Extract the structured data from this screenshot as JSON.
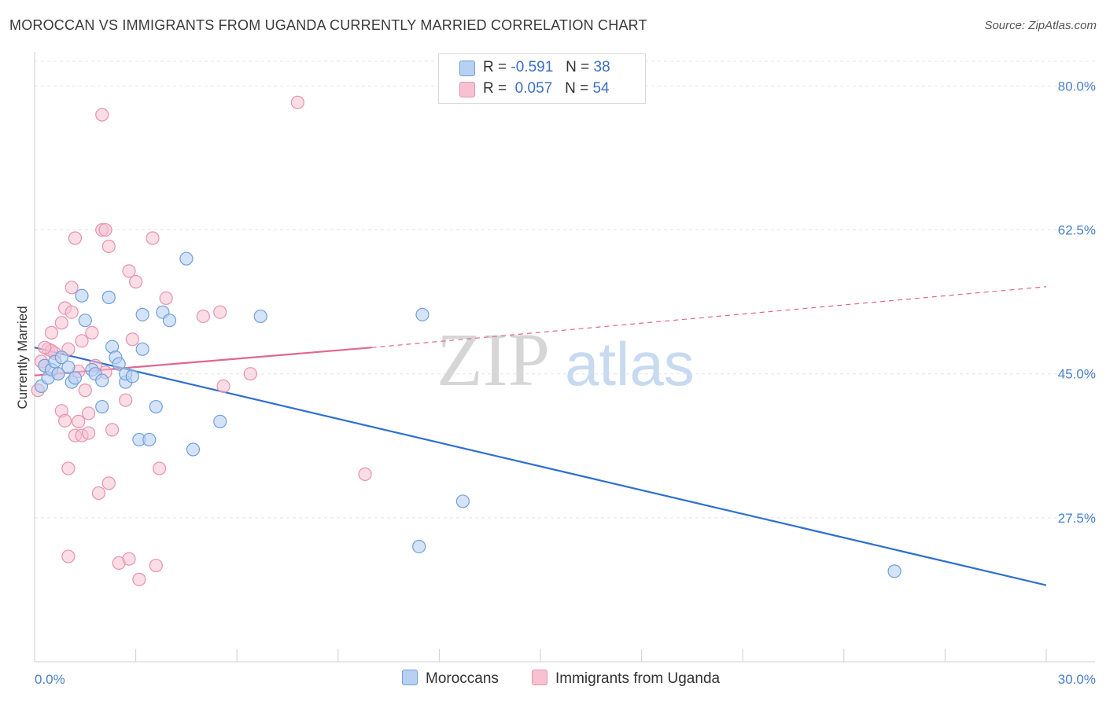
{
  "title": "MOROCCAN VS IMMIGRANTS FROM UGANDA CURRENTLY MARRIED CORRELATION CHART",
  "source": "Source: ZipAtlas.com",
  "legend": {
    "moroccans": {
      "r_label": "R =",
      "r_value": "-0.591",
      "n_label": "N =",
      "n_value": "38"
    },
    "uganda": {
      "r_label": "R =",
      "r_value": "0.057",
      "n_label": "N =",
      "n_value": "54"
    }
  },
  "bottom_legend": {
    "moroccans": "Moroccans",
    "uganda": "Immigrants from Uganda"
  },
  "watermark": {
    "zip": "ZIP",
    "atlas": "atlas"
  },
  "colors": {
    "moroccans_fill": "#b7d1f2",
    "moroccans_stroke": "#6f9fdc",
    "moroccans_line": "#2f6fd0",
    "uganda_fill": "#f7c1d1",
    "uganda_stroke": "#e891ae",
    "uganda_line": "#e06692",
    "tick_text": "#4a7fc8",
    "grid": "#e4e4e4"
  },
  "chart_data": {
    "type": "scatter",
    "title": "MOROCCAN VS IMMIGRANTS FROM UGANDA CURRENTLY MARRIED CORRELATION CHART",
    "xlabel": "",
    "ylabel": "Currently Married",
    "xlim": [
      0,
      30
    ],
    "ylim": [
      10,
      83
    ],
    "x_tick_labels": [
      "0.0%",
      "30.0%"
    ],
    "y_ticks": [
      27.5,
      45.0,
      62.5,
      80.0
    ],
    "y_tick_labels": [
      "27.5%",
      "45.0%",
      "62.5%",
      "80.0%"
    ],
    "series": [
      {
        "name": "Moroccans",
        "points": [
          [
            0.2,
            43.5
          ],
          [
            0.3,
            46.0
          ],
          [
            0.4,
            44.5
          ],
          [
            0.5,
            45.5
          ],
          [
            0.6,
            46.5
          ],
          [
            0.7,
            45.0
          ],
          [
            0.8,
            47.0
          ],
          [
            1.0,
            45.8
          ],
          [
            1.1,
            44.0
          ],
          [
            1.2,
            44.5
          ],
          [
            1.4,
            54.5
          ],
          [
            1.5,
            51.5
          ],
          [
            1.7,
            45.5
          ],
          [
            1.8,
            45.0
          ],
          [
            2.0,
            41.0
          ],
          [
            2.0,
            44.2
          ],
          [
            2.2,
            54.3
          ],
          [
            2.3,
            48.3
          ],
          [
            2.4,
            47.0
          ],
          [
            2.5,
            46.2
          ],
          [
            2.7,
            44.0
          ],
          [
            2.7,
            45.0
          ],
          [
            2.9,
            44.7
          ],
          [
            3.1,
            37.0
          ],
          [
            3.2,
            48.0
          ],
          [
            3.2,
            52.2
          ],
          [
            3.4,
            37.0
          ],
          [
            3.6,
            41.0
          ],
          [
            3.8,
            52.5
          ],
          [
            4.0,
            51.5
          ],
          [
            4.5,
            59.0
          ],
          [
            4.7,
            35.8
          ],
          [
            5.5,
            39.2
          ],
          [
            6.7,
            52.0
          ],
          [
            11.5,
            52.2
          ],
          [
            12.7,
            29.5
          ],
          [
            11.4,
            24.0
          ],
          [
            25.5,
            21.0
          ]
        ],
        "trend": {
          "x": [
            0,
            30
          ],
          "y": [
            48.2,
            19.3
          ]
        }
      },
      {
        "name": "Immigrants from Uganda",
        "points": [
          [
            0.1,
            43.0
          ],
          [
            0.2,
            46.5
          ],
          [
            0.3,
            46.0
          ],
          [
            0.4,
            48.0
          ],
          [
            0.5,
            50.0
          ],
          [
            0.6,
            47.5
          ],
          [
            0.7,
            45.0
          ],
          [
            0.8,
            51.2
          ],
          [
            0.8,
            40.5
          ],
          [
            0.9,
            39.3
          ],
          [
            1.0,
            48.0
          ],
          [
            0.9,
            53.0
          ],
          [
            1.1,
            52.5
          ],
          [
            1.0,
            33.5
          ],
          [
            1.0,
            22.8
          ],
          [
            1.1,
            55.5
          ],
          [
            1.2,
            61.5
          ],
          [
            1.2,
            37.5
          ],
          [
            1.3,
            39.2
          ],
          [
            1.4,
            37.5
          ],
          [
            1.4,
            49.0
          ],
          [
            1.5,
            43.0
          ],
          [
            1.6,
            37.8
          ],
          [
            1.7,
            50.0
          ],
          [
            1.8,
            46.0
          ],
          [
            1.9,
            30.5
          ],
          [
            2.0,
            62.5
          ],
          [
            2.1,
            62.5
          ],
          [
            2.2,
            60.5
          ],
          [
            2.2,
            31.7
          ],
          [
            2.3,
            38.2
          ],
          [
            2.0,
            76.5
          ],
          [
            2.5,
            22.0
          ],
          [
            2.8,
            22.5
          ],
          [
            2.7,
            41.8
          ],
          [
            2.8,
            57.5
          ],
          [
            2.9,
            49.2
          ],
          [
            3.0,
            56.2
          ],
          [
            3.1,
            20.0
          ],
          [
            3.5,
            61.5
          ],
          [
            3.6,
            21.7
          ],
          [
            3.7,
            33.5
          ],
          [
            3.9,
            54.2
          ],
          [
            5.0,
            52.0
          ],
          [
            5.5,
            52.5
          ],
          [
            5.6,
            43.5
          ],
          [
            6.4,
            45.0
          ],
          [
            7.8,
            78.0
          ],
          [
            9.8,
            32.8
          ],
          [
            1.6,
            40.2
          ],
          [
            0.5,
            47.8
          ],
          [
            2.1,
            45.2
          ],
          [
            1.3,
            45.3
          ],
          [
            0.3,
            48.2
          ]
        ],
        "trend_solid": {
          "x": [
            0,
            10
          ],
          "y": [
            44.8,
            48.2
          ]
        },
        "trend_dashed": {
          "x": [
            10,
            30
          ],
          "y": [
            48.2,
            55.6
          ]
        }
      }
    ]
  }
}
